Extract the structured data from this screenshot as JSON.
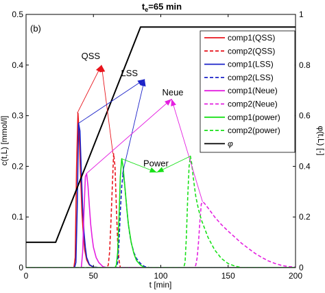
{
  "chart_data": {
    "type": "line",
    "title": "t_e=65 min",
    "title_main": "t",
    "title_sub": "e",
    "title_rest": "=65 min",
    "panel_label": "(b)",
    "xlabel": "t [min]",
    "ylabel_left": "c(t,L) [mmol/l]",
    "ylabel_right": "φ(t,L) [-]",
    "xlim": [
      0,
      200
    ],
    "ylim_left": [
      0,
      0.5
    ],
    "ylim_right": [
      0,
      1
    ],
    "xticks": [
      0,
      50,
      100,
      150,
      200
    ],
    "yticks_left": [
      0,
      0.1,
      0.2,
      0.3,
      0.4,
      0.5
    ],
    "yticks_right": [
      0,
      0.2,
      0.4,
      0.6,
      0.8,
      1
    ],
    "grid": false,
    "legend_position": "top-right",
    "series": [
      {
        "name": "comp1(QSS)",
        "axis": "left",
        "color": "#e8141c",
        "dash": "solid",
        "x": [
          0,
          35.5,
          36.5,
          37.5,
          38.5,
          39.5,
          40.5,
          41.5,
          42.5,
          43.5,
          45,
          47,
          50,
          55,
          60,
          200
        ],
        "y": [
          0,
          0,
          0.02,
          0.2,
          0.305,
          0.26,
          0.18,
          0.11,
          0.065,
          0.035,
          0.015,
          0.005,
          0.001,
          0,
          0,
          0
        ]
      },
      {
        "name": "comp2(QSS)",
        "axis": "left",
        "color": "#e8141c",
        "dash": "dashed",
        "x": [
          0,
          60,
          61,
          62,
          63,
          64,
          65,
          66,
          67,
          68,
          69,
          70,
          200
        ],
        "y": [
          0,
          0,
          0.005,
          0.03,
          0.09,
          0.16,
          0.225,
          0.2,
          0.12,
          0.05,
          0.015,
          0,
          0
        ]
      },
      {
        "name": "comp1(LSS)",
        "axis": "left",
        "color": "#1b22c8",
        "dash": "solid",
        "x": [
          0,
          36,
          37,
          38,
          39,
          40,
          41,
          42,
          43,
          44,
          45,
          47,
          50,
          55,
          60,
          200
        ],
        "y": [
          0,
          0,
          0.01,
          0.12,
          0.285,
          0.27,
          0.19,
          0.12,
          0.07,
          0.04,
          0.02,
          0.006,
          0.001,
          0,
          0,
          0
        ]
      },
      {
        "name": "comp2(LSS)",
        "axis": "left",
        "color": "#1b22c8",
        "dash": "dashed",
        "x": [
          0,
          67,
          68,
          69,
          70,
          71,
          72,
          73,
          74,
          75,
          76,
          77,
          78,
          80,
          82,
          85,
          88,
          92,
          200
        ],
        "y": [
          0,
          0,
          0.01,
          0.05,
          0.11,
          0.16,
          0.185,
          0.17,
          0.14,
          0.11,
          0.085,
          0.065,
          0.05,
          0.03,
          0.018,
          0.008,
          0.002,
          0,
          0
        ]
      },
      {
        "name": "comp1(Neue)",
        "axis": "left",
        "color": "#e41fe0",
        "dash": "solid",
        "x": [
          0,
          41,
          42,
          43,
          44,
          45,
          46,
          47,
          48,
          49,
          50,
          52,
          54,
          57,
          60,
          200
        ],
        "y": [
          0,
          0,
          0.03,
          0.11,
          0.18,
          0.185,
          0.16,
          0.12,
          0.085,
          0.06,
          0.04,
          0.02,
          0.01,
          0.002,
          0,
          0
        ]
      },
      {
        "name": "comp2(Neue)",
        "axis": "left",
        "color": "#e41fe0",
        "dash": "dashed",
        "x": [
          0,
          125,
          126,
          127,
          128,
          129,
          130,
          131,
          132,
          133,
          135,
          140,
          145,
          150,
          155,
          160,
          165,
          170,
          175,
          180,
          185,
          190,
          195,
          200
        ],
        "y": [
          0,
          0,
          0.005,
          0.02,
          0.05,
          0.09,
          0.125,
          0.13,
          0.128,
          0.125,
          0.118,
          0.1,
          0.085,
          0.072,
          0.06,
          0.048,
          0.038,
          0.028,
          0.02,
          0.013,
          0.008,
          0.004,
          0.002,
          0.001
        ]
      },
      {
        "name": "comp1(power)",
        "axis": "left",
        "color": "#18e018",
        "dash": "solid",
        "x": [
          0,
          66,
          67,
          68,
          69,
          70,
          71,
          72,
          73,
          74,
          75,
          76,
          78,
          80,
          82,
          85,
          88,
          200
        ],
        "y": [
          0,
          0,
          0.005,
          0.03,
          0.1,
          0.18,
          0.215,
          0.2,
          0.17,
          0.14,
          0.11,
          0.085,
          0.05,
          0.028,
          0.014,
          0.005,
          0,
          0
        ]
      },
      {
        "name": "comp2(power)",
        "axis": "left",
        "color": "#18e018",
        "dash": "dashed",
        "x": [
          0,
          117,
          118,
          119,
          120,
          121,
          122,
          123,
          124,
          125,
          126,
          128,
          130,
          135,
          140,
          145,
          150,
          155,
          160,
          200
        ],
        "y": [
          0,
          0,
          0.01,
          0.06,
          0.14,
          0.2,
          0.22,
          0.205,
          0.18,
          0.16,
          0.14,
          0.115,
          0.095,
          0.06,
          0.035,
          0.018,
          0.008,
          0.003,
          0,
          0
        ]
      },
      {
        "name": "φ",
        "axis": "right",
        "color": "#000000",
        "dash": "solid",
        "x": [
          0,
          22,
          85,
          200
        ],
        "y": [
          0.1,
          0.1,
          0.95,
          0.95
        ]
      }
    ],
    "annotations": [
      {
        "label": "QSS",
        "color": "#e8141c",
        "tip": [
          56,
          0.4
        ],
        "label_pos": [
          55,
          0.412
        ],
        "label_anchor": "end",
        "from": [
          [
            38,
            0.305
          ],
          [
            64.5,
            0.225
          ]
        ]
      },
      {
        "label": "LSS",
        "color": "#1b22c8",
        "tip": [
          88,
          0.372
        ],
        "label_pos": [
          83,
          0.378
        ],
        "label_anchor": "end",
        "from": [
          [
            39,
            0.285
          ],
          [
            71.5,
            0.185
          ]
        ]
      },
      {
        "label": "Neue",
        "color": "#e41fe0",
        "tip": [
          108,
          0.333
        ],
        "label_pos": [
          101,
          0.34
        ],
        "label_anchor": "start",
        "from": [
          [
            44.5,
            0.185
          ],
          [
            131,
            0.13
          ]
        ]
      },
      {
        "label": "Power",
        "color": "#18e018",
        "tip": [
          97,
          0.188
        ],
        "label_pos": [
          87,
          0.2
        ],
        "label_anchor": "start",
        "from": [
          [
            71,
            0.215
          ],
          [
            122,
            0.22
          ]
        ]
      }
    ]
  },
  "legend": {
    "items": [
      {
        "label": "comp1(QSS)",
        "color": "#e8141c",
        "dash": "solid"
      },
      {
        "label": "comp2(QSS)",
        "color": "#e8141c",
        "dash": "dashed"
      },
      {
        "label": "comp1(LSS)",
        "color": "#1b22c8",
        "dash": "solid"
      },
      {
        "label": "comp2(LSS)",
        "color": "#1b22c8",
        "dash": "dashed"
      },
      {
        "label": "comp1(Neue)",
        "color": "#e41fe0",
        "dash": "solid"
      },
      {
        "label": "comp2(Neue)",
        "color": "#e41fe0",
        "dash": "dashed"
      },
      {
        "label": "comp1(power)",
        "color": "#18e018",
        "dash": "solid"
      },
      {
        "label": "comp2(power)",
        "color": "#18e018",
        "dash": "dashed"
      },
      {
        "label": "φ",
        "color": "#000000",
        "dash": "solid"
      }
    ]
  }
}
